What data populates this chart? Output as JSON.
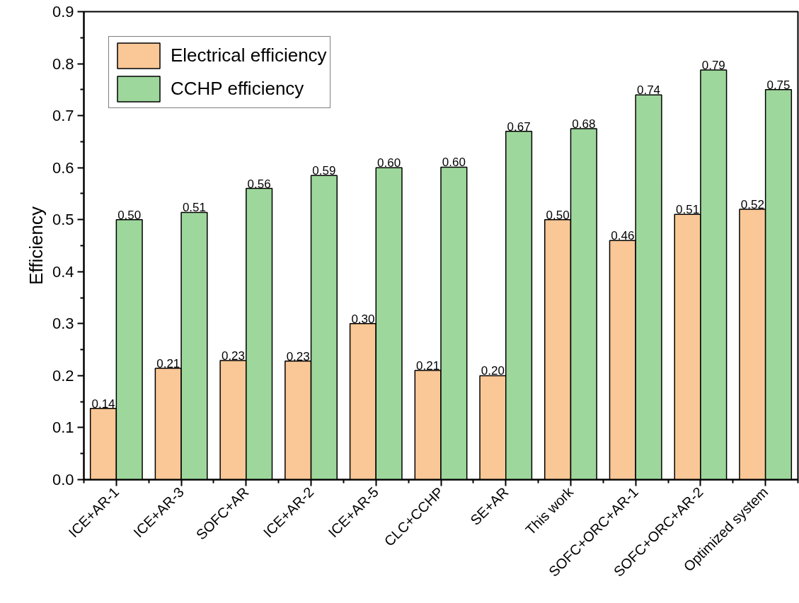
{
  "chart_data": {
    "type": "bar",
    "ylabel": "Efficiency",
    "categories": [
      "ICE+AR-1",
      "ICE+AR-3",
      "SOFC+AR",
      "ICE+AR-2",
      "ICE+AR-5",
      "CLC+CCHP",
      "SE+AR",
      "This work",
      "SOFC+ORC+AR-1",
      "SOFC+ORC+AR-2",
      "Optimized system"
    ],
    "series": [
      {
        "name": "Electrical efficiency",
        "color": "#fac796",
        "values": [
          0.137,
          0.214,
          0.229,
          0.228,
          0.3,
          0.21,
          0.2,
          0.5,
          0.46,
          0.51,
          0.52
        ],
        "value_labels": [
          "0.14",
          "0.21",
          "0.23",
          "0.23",
          "0.30",
          "0.21",
          "0.20",
          "0.50",
          "0.46",
          "0.51",
          "0.52"
        ]
      },
      {
        "name": "CCHP efficiency",
        "color": "#9ed79c",
        "values": [
          0.5,
          0.514,
          0.56,
          0.585,
          0.6,
          0.601,
          0.67,
          0.675,
          0.74,
          0.788,
          0.75
        ],
        "value_labels": [
          "0.50",
          "0.51",
          "0.56",
          "0.59",
          "0.60",
          "0.60",
          "0.67",
          "0.68",
          "0.74",
          "0.79",
          "0.75"
        ]
      }
    ],
    "ylim": [
      0,
      0.9
    ],
    "yticks": [
      {
        "value": 0,
        "label": "0.0"
      },
      0.1,
      0.2,
      0.3,
      0.4,
      0.5,
      0.6,
      0.7,
      0.8,
      0.9
    ],
    "grid": false,
    "legend": "top left"
  }
}
